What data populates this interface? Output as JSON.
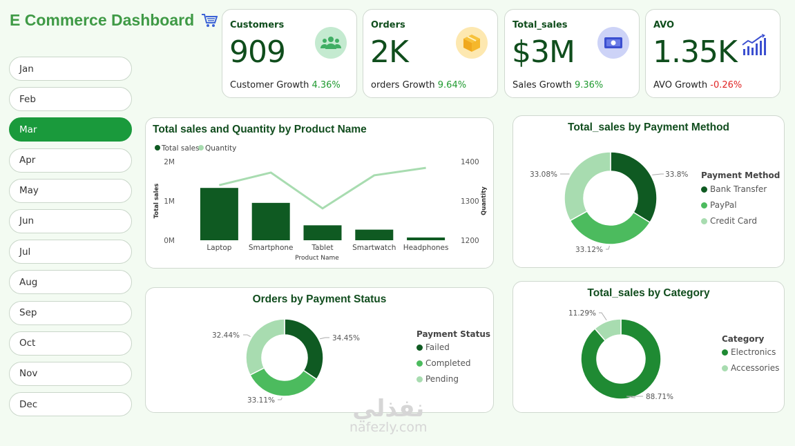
{
  "title": "E Commerce Dashboard",
  "months": [
    "Jan",
    "Feb",
    "Mar",
    "Apr",
    "May",
    "Jun",
    "Jul",
    "Aug",
    "Sep",
    "Oct",
    "Nov",
    "Dec"
  ],
  "active_month": "Mar",
  "kpis": {
    "customers": {
      "label": "Customers",
      "value": "909",
      "growth_label": "Customer Growth",
      "growth": "4.36%"
    },
    "orders": {
      "label": "Orders",
      "value": "2K",
      "growth_label": "orders Growth",
      "growth": "9.64%"
    },
    "sales": {
      "label": "Total_sales",
      "value": "$3M",
      "growth_label": "Sales Growth",
      "growth": "9.36%"
    },
    "avo": {
      "label": "AVO",
      "value": "1.35K",
      "growth_label": "AVO Growth",
      "growth": "-0.26%"
    }
  },
  "colors": {
    "dark": "#0f5a22",
    "mid": "#4cbb5e",
    "light": "#a8dcb0",
    "medium2": "#1f8a33",
    "accent": "#3f9a46"
  },
  "chart_data": [
    {
      "type": "bar",
      "title": "Total sales and Quantity by Product Name",
      "categories": [
        "Laptop",
        "Smartphone",
        "Tablet",
        "Smartwatch",
        "Headphones"
      ],
      "series": [
        {
          "name": "Total sales",
          "type": "bar",
          "values": [
            1330000,
            950000,
            380000,
            270000,
            70000
          ]
        },
        {
          "name": "Quantity",
          "type": "line",
          "values": [
            1340,
            1372,
            1281,
            1365,
            1384
          ]
        }
      ],
      "xlabel": "Product Name",
      "ylabel": "Total sales",
      "y2label": "Quantity",
      "yticks": [
        "0M",
        "1M",
        "2M"
      ],
      "y2ticks": [
        "1200",
        "1300",
        "1400"
      ],
      "ylim": [
        0,
        2000000
      ],
      "y2lim": [
        1200,
        1400
      ]
    },
    {
      "type": "pie",
      "title": "Total_sales by Payment Method",
      "legend_title": "Payment Method",
      "labels": [
        "Bank Transfer",
        "PayPal",
        "Credit Card"
      ],
      "values": [
        33.8,
        33.12,
        33.08
      ],
      "value_labels": [
        "33.8%",
        "33.12%",
        "33.08%"
      ]
    },
    {
      "type": "pie",
      "title": "Orders by Payment Status",
      "legend_title": "Payment Status",
      "labels": [
        "Failed",
        "Completed",
        "Pending"
      ],
      "values": [
        34.45,
        33.11,
        32.44
      ],
      "value_labels": [
        "34.45%",
        "33.11%",
        "32.44%"
      ]
    },
    {
      "type": "pie",
      "title": "Total_sales by Category",
      "legend_title": "Category",
      "labels": [
        "Electronics",
        "Accessories"
      ],
      "values": [
        88.71,
        11.29
      ],
      "value_labels": [
        "88.71%",
        "11.29%"
      ]
    }
  ],
  "watermark": {
    "arabic": "نفذلي",
    "latin": "nafezly.com"
  }
}
